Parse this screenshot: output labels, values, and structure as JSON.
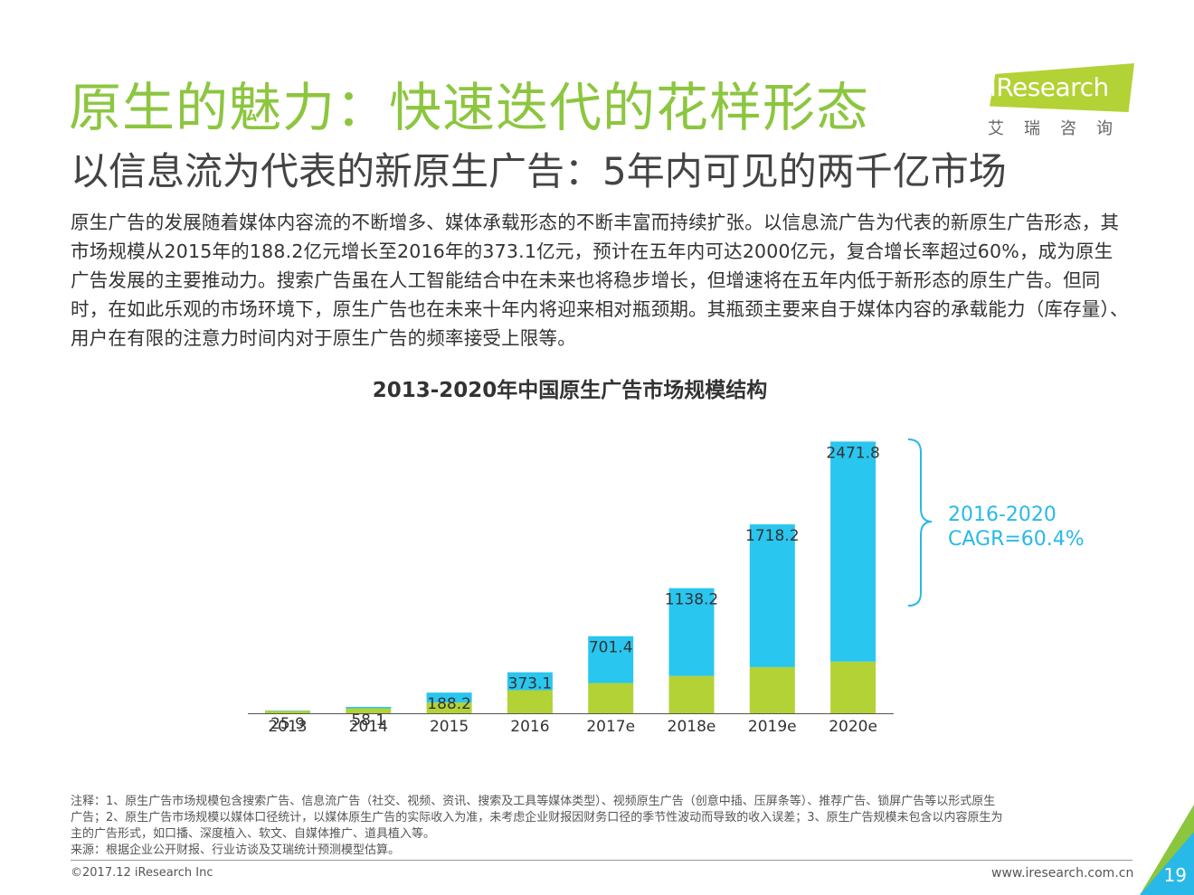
{
  "header": {
    "title": "原生的魅力：快速迭代的花样形态",
    "subtitle": "以信息流为代表的新原生广告：5年内可见的两千亿市场"
  },
  "logo": {
    "text": "iResearch",
    "cn": "艾瑞咨询"
  },
  "body_text": "原生广告的发展随着媒体内容流的不断增多、媒体承载形态的不断丰富而持续扩张。以信息流广告为代表的新原生广告形态，其市场规模从2015年的188.2亿元增长至2016年的373.1亿元，预计在五年内可达2000亿元，复合增长率超过60%，成为原生广告发展的主要推动力。搜索广告虽在人工智能结合中在未来也将稳步增长，但增速将在五年内低于新形态的原生广告。但同时，在如此乐观的市场环境下，原生广告也在未来十年内将迎来相对瓶颈期。其瓶颈主要来自于媒体内容的承载能力（库存量）、用户在有限的注意力时间内对于原生广告的频率接受上限等。",
  "chart_data": {
    "type": "bar",
    "stacked": true,
    "title": "2013-2020年中国原生广告市场规模结构",
    "categories": [
      "2013",
      "2014",
      "2015",
      "2016",
      "2017e",
      "2018e",
      "2019e",
      "2020e"
    ],
    "series": [
      {
        "color": "#b2d235",
        "values": [
          22,
          45,
          98,
          210,
          275,
          340,
          420,
          470
        ]
      },
      {
        "color": "#29c6ef",
        "values": [
          3.9,
          13.1,
          90.2,
          163.1,
          426.4,
          798.2,
          1298.2,
          2001.8
        ]
      }
    ],
    "totals": [
      25.9,
      58.1,
      188.2,
      373.1,
      701.4,
      1138.2,
      1718.2,
      2471.8
    ],
    "ylim": [
      0,
      2500
    ],
    "grid": false,
    "annotation": {
      "line1": "2016-2020",
      "line2": "CAGR=60.4%",
      "color": "#29b9e8"
    }
  },
  "notes": {
    "line1": "注释：1、原生广告市场规模包含搜索广告、信息流广告（社交、视频、资讯、搜索及工具等媒体类型）、视频原生广告（创意中插、压屏条等）、推荐广告、锁屏广告等以形式原生",
    "line2": "广告；2、原生广告市场规模以媒体口径统计，以媒体原生广告的实际收入为准，未考虑企业财报因财务口径的季节性波动而导致的收入误差；3、原生广告规模未包含以内容原生为",
    "line3": "主的广告形式，如口播、深度植入、软文、自媒体推广、道具植入等。",
    "source": "来源：根据企业公开财报、行业访谈及艾瑞统计预测模型估算。"
  },
  "footer": {
    "copyright": "©2017.12 iResearch Inc",
    "website": "www.iresearch.com.cn",
    "page": "19"
  }
}
